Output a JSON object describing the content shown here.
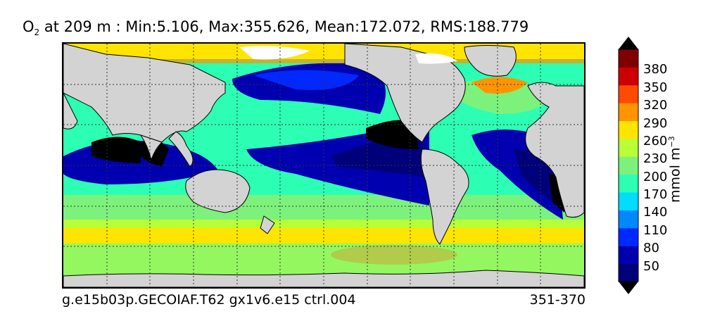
{
  "title": {
    "species": "O",
    "subscript": "2",
    "rest": " at 209 m : Min:5.106, Max:355.626, Mean:172.072, RMS:188.779"
  },
  "footer": {
    "case_name": "g.e15b03p.GECOIAF.T62 gx1v6.e15 ctrl.004",
    "years": "351-370"
  },
  "colorbar": {
    "unit_prefix": "mmol m",
    "unit_exponent": "−3",
    "ticks": [
      "50",
      "80",
      "110",
      "140",
      "170",
      "200",
      "230",
      "260",
      "290",
      "320",
      "350",
      "380"
    ],
    "colors": [
      "#00007a",
      "#0000b0",
      "#0028ff",
      "#0088ff",
      "#00ddff",
      "#2cffb4",
      "#7cf27c",
      "#b8ff38",
      "#ffe400",
      "#ff9400",
      "#ff4a00",
      "#cc0000",
      "#800000"
    ],
    "extend_low_color": "#000000",
    "extend_high_color": "#000000"
  },
  "colors": {
    "land": "#d3d3d3",
    "grid": "#333333"
  }
}
